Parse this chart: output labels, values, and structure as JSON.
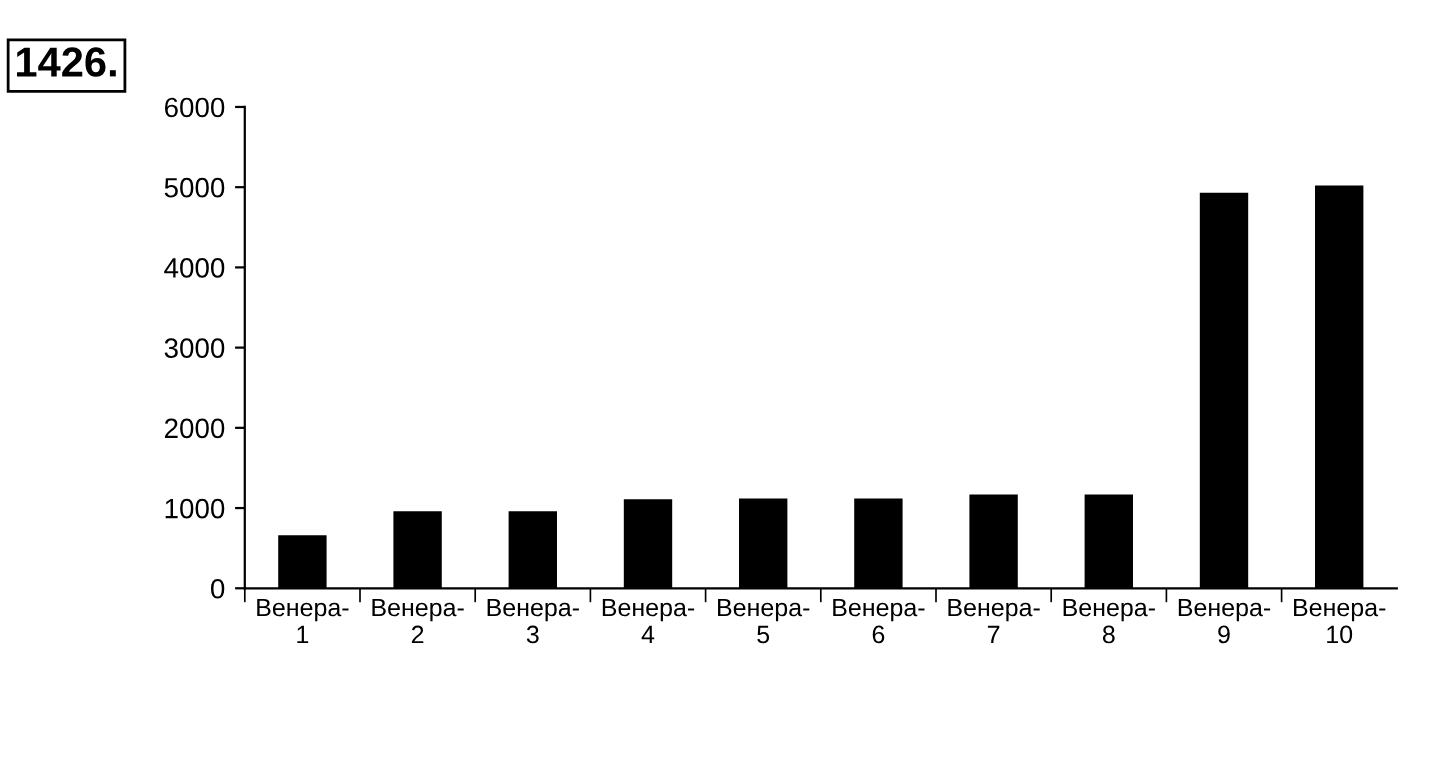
{
  "chart_data": {
    "type": "bar",
    "annotations": [
      "1426."
    ],
    "categories": [
      "Венера-\n1",
      "Венера-\n2",
      "Венера-\n3",
      "Венера-\n4",
      "Венера-\n5",
      "Венера-\n6",
      "Венера-\n7",
      "Венера-\n8",
      "Венера-\n9",
      "Венера-\n10"
    ],
    "values": [
      660,
      960,
      960,
      1110,
      1120,
      1120,
      1170,
      1170,
      4930,
      5020
    ],
    "color": "#000000",
    "ylim": [
      0,
      6000
    ],
    "yticks": [
      0,
      1000,
      2000,
      3000,
      4000,
      5000,
      6000
    ],
    "grid": false,
    "legend": false
  }
}
